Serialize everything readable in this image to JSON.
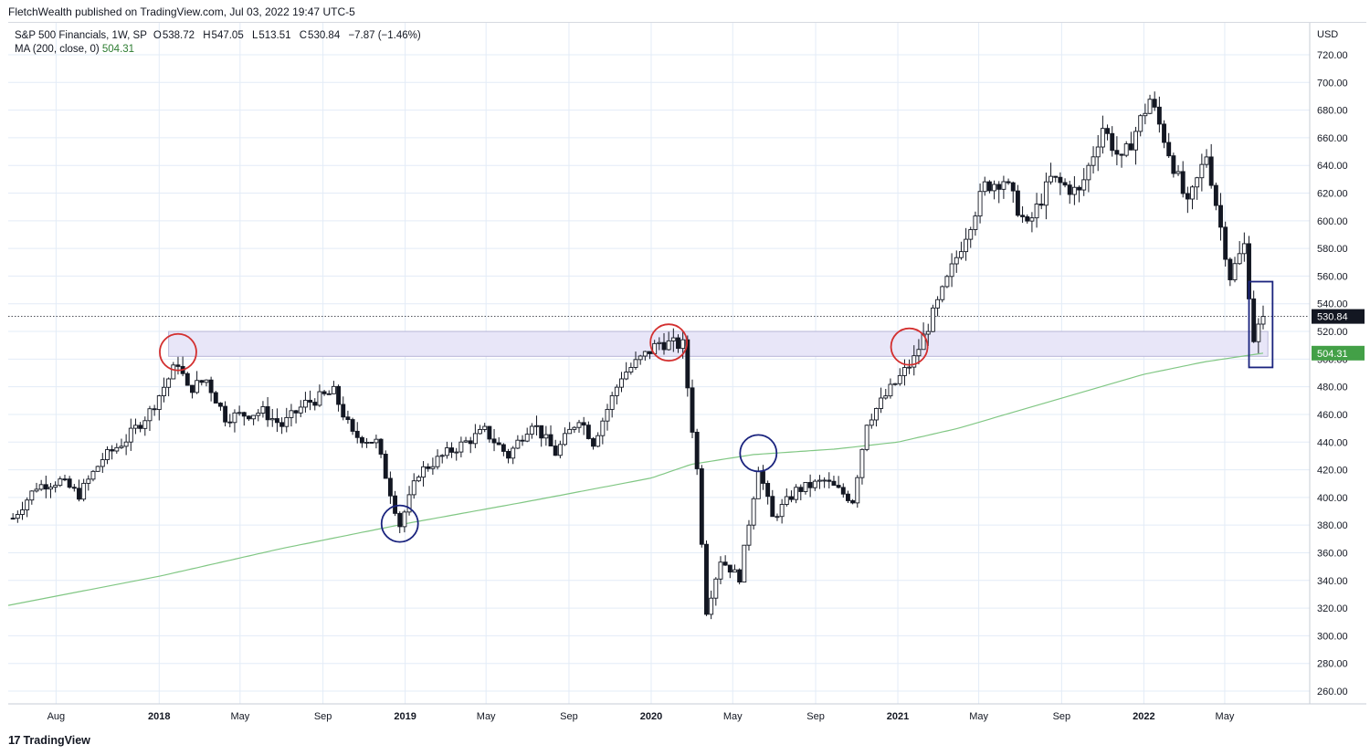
{
  "header": {
    "publish_line": "FletchWealth published on TradingView.com, Jul 03, 2022 19:47 UTC-5"
  },
  "legend": {
    "symbol": "S&P 500 Financials, 1W, SP",
    "open_label": "O",
    "open": "538.72",
    "high_label": "H",
    "high": "547.05",
    "low_label": "L",
    "low": "513.51",
    "close_label": "C",
    "close": "530.84",
    "change": "−7.87 (−1.46%)",
    "ma_label": "MA (200, close, 0)",
    "ma_value": "504.31"
  },
  "footer": {
    "brand": "TradingView",
    "logo_glyph": "17"
  },
  "chart_data": {
    "type": "candlestick",
    "interval": "1W",
    "currency": "USD",
    "y_axis_label": "USD",
    "ylim": [
      245,
      730
    ],
    "y_ticks": [
      260,
      280,
      300,
      320,
      340,
      360,
      380,
      400,
      420,
      440,
      460,
      480,
      500,
      520,
      540,
      560,
      580,
      600,
      620,
      640,
      660,
      680,
      700,
      720
    ],
    "x_ticks": [
      {
        "label": "Aug",
        "date": "2017-08-01",
        "bold": false
      },
      {
        "label": "2018",
        "date": "2018-01-01",
        "bold": true
      },
      {
        "label": "May",
        "date": "2018-05-01",
        "bold": false
      },
      {
        "label": "Sep",
        "date": "2018-09-01",
        "bold": false
      },
      {
        "label": "2019",
        "date": "2019-01-01",
        "bold": true
      },
      {
        "label": "May",
        "date": "2019-05-01",
        "bold": false
      },
      {
        "label": "Sep",
        "date": "2019-09-01",
        "bold": false
      },
      {
        "label": "2020",
        "date": "2020-01-01",
        "bold": true
      },
      {
        "label": "May",
        "date": "2020-05-01",
        "bold": false
      },
      {
        "label": "Sep",
        "date": "2020-09-01",
        "bold": false
      },
      {
        "label": "2021",
        "date": "2021-01-01",
        "bold": true
      },
      {
        "label": "May",
        "date": "2021-05-01",
        "bold": false
      },
      {
        "label": "Sep",
        "date": "2021-09-01",
        "bold": false
      },
      {
        "label": "2022",
        "date": "2022-01-01",
        "bold": true
      },
      {
        "label": "May",
        "date": "2022-05-01",
        "bold": false
      }
    ],
    "x_range": [
      "2017-05-22",
      "2022-08-08"
    ],
    "price_path": [
      [
        "2017-05-29",
        385
      ],
      [
        "2017-07-03",
        408
      ],
      [
        "2017-08-07",
        412
      ],
      [
        "2017-09-04",
        402
      ],
      [
        "2017-10-09",
        428
      ],
      [
        "2017-11-13",
        442
      ],
      [
        "2017-12-18",
        462
      ],
      [
        "2018-01-29",
        498
      ],
      [
        "2018-02-12",
        478
      ],
      [
        "2018-03-12",
        485
      ],
      [
        "2018-04-09",
        458
      ],
      [
        "2018-06-04",
        462
      ],
      [
        "2018-07-02",
        452
      ],
      [
        "2018-08-06",
        468
      ],
      [
        "2018-09-17",
        476
      ],
      [
        "2018-10-15",
        445
      ],
      [
        "2018-11-19",
        440
      ],
      [
        "2018-12-24",
        380
      ],
      [
        "2019-01-21",
        418
      ],
      [
        "2019-03-04",
        432
      ],
      [
        "2019-04-29",
        448
      ],
      [
        "2019-06-03",
        430
      ],
      [
        "2019-07-08",
        455
      ],
      [
        "2019-08-12",
        432
      ],
      [
        "2019-09-16",
        458
      ],
      [
        "2019-10-07",
        440
      ],
      [
        "2019-11-18",
        488
      ],
      [
        "2020-01-13",
        512
      ],
      [
        "2020-02-17",
        510
      ],
      [
        "2020-03-09",
        420
      ],
      [
        "2020-03-23",
        318
      ],
      [
        "2020-04-13",
        355
      ],
      [
        "2020-05-11",
        342
      ],
      [
        "2020-06-08",
        422
      ],
      [
        "2020-06-29",
        385
      ],
      [
        "2020-08-03",
        405
      ],
      [
        "2020-09-14",
        412
      ],
      [
        "2020-10-26",
        398
      ],
      [
        "2020-11-16",
        455
      ],
      [
        "2020-12-21",
        478
      ],
      [
        "2021-01-25",
        500
      ],
      [
        "2021-03-08",
        548
      ],
      [
        "2021-05-10",
        625
      ],
      [
        "2021-06-07",
        630
      ],
      [
        "2021-07-12",
        595
      ],
      [
        "2021-08-16",
        630
      ],
      [
        "2021-09-27",
        620
      ],
      [
        "2021-11-01",
        668
      ],
      [
        "2021-11-29",
        642
      ],
      [
        "2022-01-10",
        688
      ],
      [
        "2022-01-31",
        660
      ],
      [
        "2022-03-07",
        610
      ],
      [
        "2022-04-04",
        648
      ],
      [
        "2022-05-09",
        560
      ],
      [
        "2022-05-30",
        582
      ],
      [
        "2022-06-13",
        515
      ],
      [
        "2022-06-27",
        530.84
      ]
    ],
    "ma200_path": [
      [
        "2017-05-22",
        322
      ],
      [
        "2018-01-01",
        343
      ],
      [
        "2018-07-01",
        363
      ],
      [
        "2019-01-01",
        381
      ],
      [
        "2019-07-01",
        397
      ],
      [
        "2020-01-01",
        414
      ],
      [
        "2020-03-01",
        424
      ],
      [
        "2020-06-01",
        431
      ],
      [
        "2020-10-01",
        435
      ],
      [
        "2021-01-01",
        440
      ],
      [
        "2021-04-01",
        450
      ],
      [
        "2021-07-01",
        463
      ],
      [
        "2021-10-01",
        476
      ],
      [
        "2022-01-01",
        489
      ],
      [
        "2022-04-01",
        498
      ],
      [
        "2022-06-27",
        504.31
      ]
    ],
    "ma200": {
      "name": "MA (200, close, 0)",
      "value": 504.31,
      "color": "#81c784"
    },
    "last_close": 530.84,
    "resistance_zone": {
      "from_date": "2018-01-15",
      "to_date": "2022-07-04",
      "low": 502,
      "high": 520,
      "color": "#e8e6f8"
    },
    "annotations": [
      {
        "type": "circle",
        "color": "#d32f2f",
        "date": "2018-01-29",
        "price": 505
      },
      {
        "type": "circle",
        "color": "#1a237e",
        "date": "2018-12-24",
        "price": 381
      },
      {
        "type": "circle",
        "color": "#d32f2f",
        "date": "2020-01-27",
        "price": 512
      },
      {
        "type": "circle",
        "color": "#1a237e",
        "date": "2020-06-08",
        "price": 432
      },
      {
        "type": "circle",
        "color": "#d32f2f",
        "date": "2021-01-18",
        "price": 509
      },
      {
        "type": "rect",
        "color": "#1a237e",
        "from_date": "2022-06-06",
        "to_date": "2022-07-11",
        "high": 556,
        "low": 494
      }
    ],
    "price_labels": [
      {
        "value": "530.84",
        "bg": "#131722",
        "fg": "#ffffff"
      },
      {
        "value": "504.31",
        "bg": "#43a047",
        "fg": "#ffffff"
      }
    ],
    "colors": {
      "up": "#ffffff",
      "down": "#131722",
      "wick": "#131722",
      "grid": "#e3ecf7"
    }
  }
}
